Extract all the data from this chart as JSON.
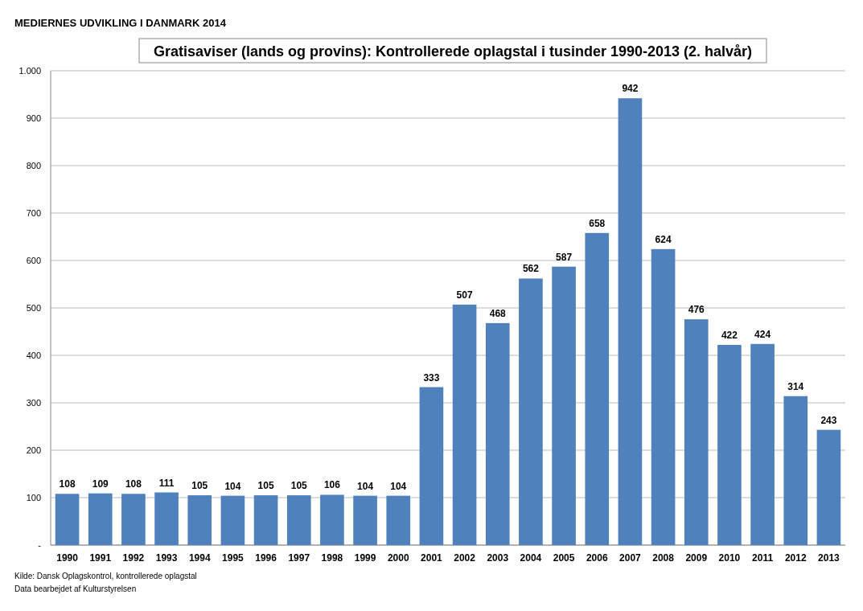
{
  "chart_data": {
    "type": "bar",
    "title": "Gratisaviser (lands og provins): Kontrollerede oplagstal i tusinder 1990-2013 (2. halvår)",
    "subtitle": "MEDIERNES UDVIKLING I DANMARK 2014",
    "categories": [
      "1990",
      "1991",
      "1992",
      "1993",
      "1994",
      "1995",
      "1996",
      "1997",
      "1998",
      "1999",
      "2000",
      "2001",
      "2002",
      "2003",
      "2004",
      "2005",
      "2006",
      "2007",
      "2008",
      "2009",
      "2010",
      "2011",
      "2012",
      "2013"
    ],
    "values": [
      108,
      109,
      108,
      111,
      105,
      104,
      105,
      105,
      106,
      104,
      104,
      333,
      507,
      468,
      562,
      587,
      658,
      942,
      624,
      476,
      422,
      424,
      314,
      243
    ],
    "color": "#4f81bd",
    "ylim": [
      0,
      1000
    ],
    "yticks": [
      {
        "value": 0,
        "label": "-"
      },
      100,
      200,
      300,
      400,
      500,
      600,
      700,
      800,
      900,
      {
        "value": 1000,
        "label": "1.000"
      }
    ],
    "grid": "y",
    "data_labels": true,
    "annotations": [
      "Kilde: Dansk Oplagskontrol, kontrollerede oplagstal",
      "Data bearbejdet af Kulturstyrelsen"
    ]
  }
}
